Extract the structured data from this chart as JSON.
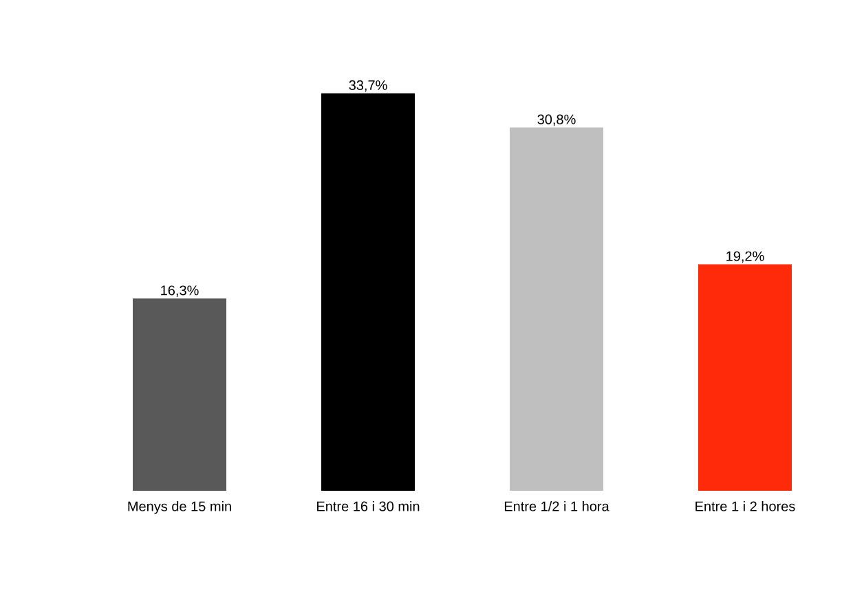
{
  "chart_data": {
    "type": "bar",
    "categories": [
      "Menys de 15 min",
      "Entre 16 i 30 min",
      "Entre 1/2 i 1 hora",
      "Entre 1 i 2 hores"
    ],
    "values": [
      16.3,
      33.7,
      30.8,
      19.2
    ],
    "colors": [
      "#595959",
      "#000000",
      "#bfbfbf",
      "#ff2a0a"
    ],
    "value_labels": [
      "16,3%",
      "33,7%",
      "30,8%",
      "19,2%"
    ]
  }
}
